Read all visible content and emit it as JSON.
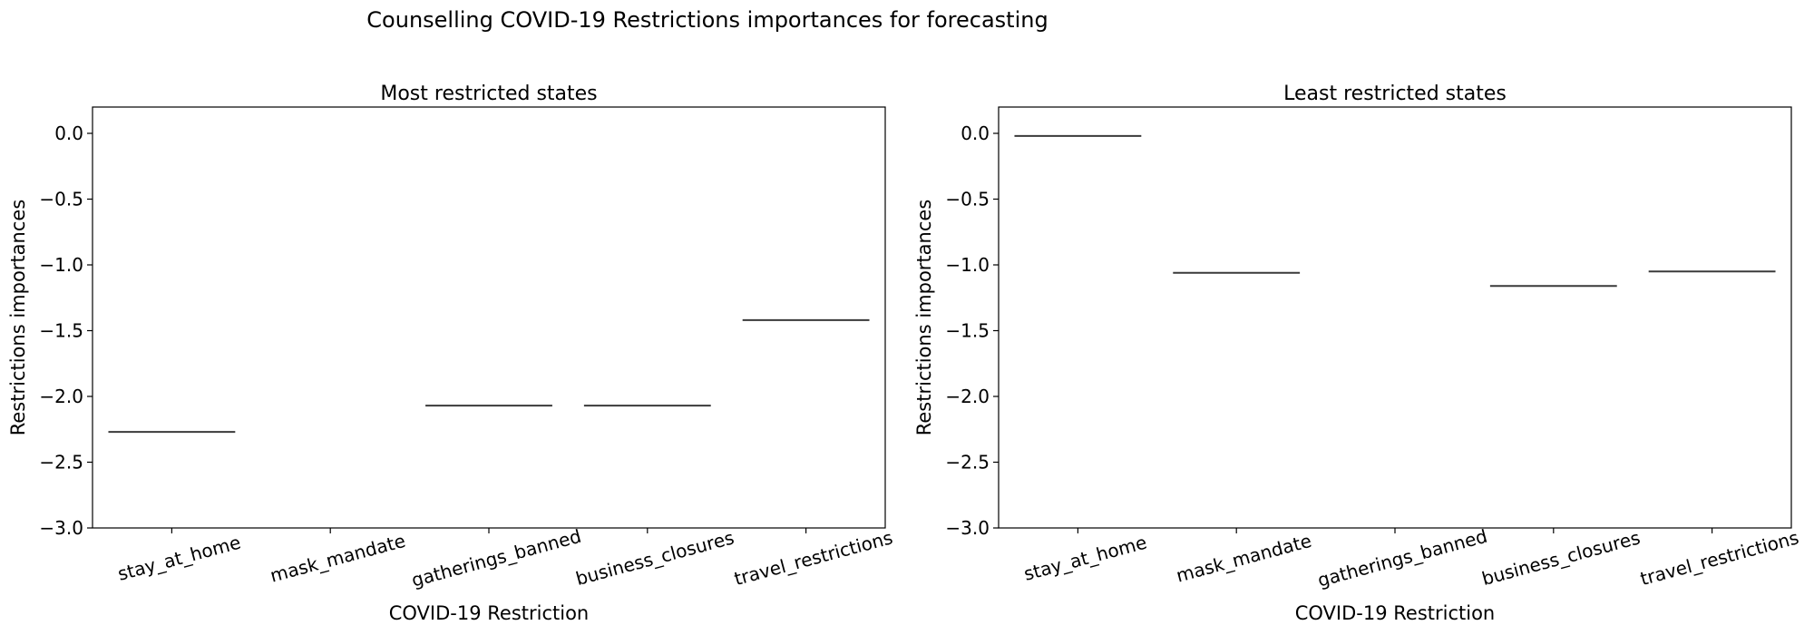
{
  "figure": {
    "title": "Counselling COVID-19 Restrictions importances for forecasting"
  },
  "chart_data": [
    {
      "type": "bar",
      "title": "Most restricted states",
      "xlabel": "COVID-19 Restriction",
      "ylabel": "Restrictions importances",
      "categories": [
        "stay_at_home",
        "mask_mandate",
        "gatherings_banned",
        "business_closures",
        "travel_restrictions"
      ],
      "values": [
        -2.27,
        null,
        -2.07,
        -2.07,
        -1.42
      ],
      "ylim": [
        -3.0,
        0.2
      ],
      "yticks": [
        0.0,
        -0.5,
        -1.0,
        -1.5,
        -2.0,
        -2.5,
        -3.0
      ],
      "ytick_labels": [
        "0.0",
        "−0.5",
        "−1.0",
        "−1.5",
        "−2.0",
        "−2.5",
        "−3.0"
      ],
      "grid": false
    },
    {
      "type": "bar",
      "title": "Least restricted states",
      "xlabel": "COVID-19 Restriction",
      "ylabel": "Restrictions importances",
      "categories": [
        "stay_at_home",
        "mask_mandate",
        "gatherings_banned",
        "business_closures",
        "travel_restrictions"
      ],
      "values": [
        -0.02,
        -1.06,
        null,
        -1.16,
        -1.05
      ],
      "ylim": [
        -3.0,
        0.2
      ],
      "yticks": [
        0.0,
        -0.5,
        -1.0,
        -1.5,
        -2.0,
        -2.5,
        -3.0
      ],
      "ytick_labels": [
        "0.0",
        "−0.5",
        "−1.0",
        "−1.5",
        "−2.0",
        "−2.5",
        "−3.0"
      ],
      "grid": false
    }
  ]
}
